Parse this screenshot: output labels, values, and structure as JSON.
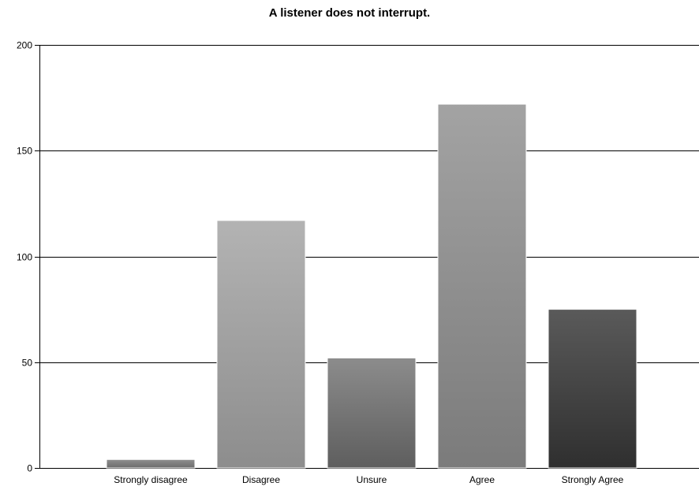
{
  "chart_data": {
    "type": "bar",
    "title": "A listener does not interrupt.",
    "xlabel": "",
    "ylabel": "",
    "categories": [
      "Strongly disagree",
      "Disagree",
      "Unsure",
      "Agree",
      "Strongly Agree"
    ],
    "values": [
      4,
      117,
      52,
      172,
      75
    ],
    "ylim": [
      0,
      200
    ],
    "yticks": [
      0,
      50,
      100,
      150,
      200
    ],
    "grid": true,
    "legend": "none",
    "bar_colors": [
      [
        "#8f8f8f",
        "#6b6b6b"
      ],
      [
        "#b3b3b3",
        "#8d8d8d"
      ],
      [
        "#8c8c8c",
        "#5e5e5e"
      ],
      [
        "#a3a3a3",
        "#7b7b7b"
      ],
      [
        "#5a5a5a",
        "#2f2f2f"
      ]
    ]
  }
}
